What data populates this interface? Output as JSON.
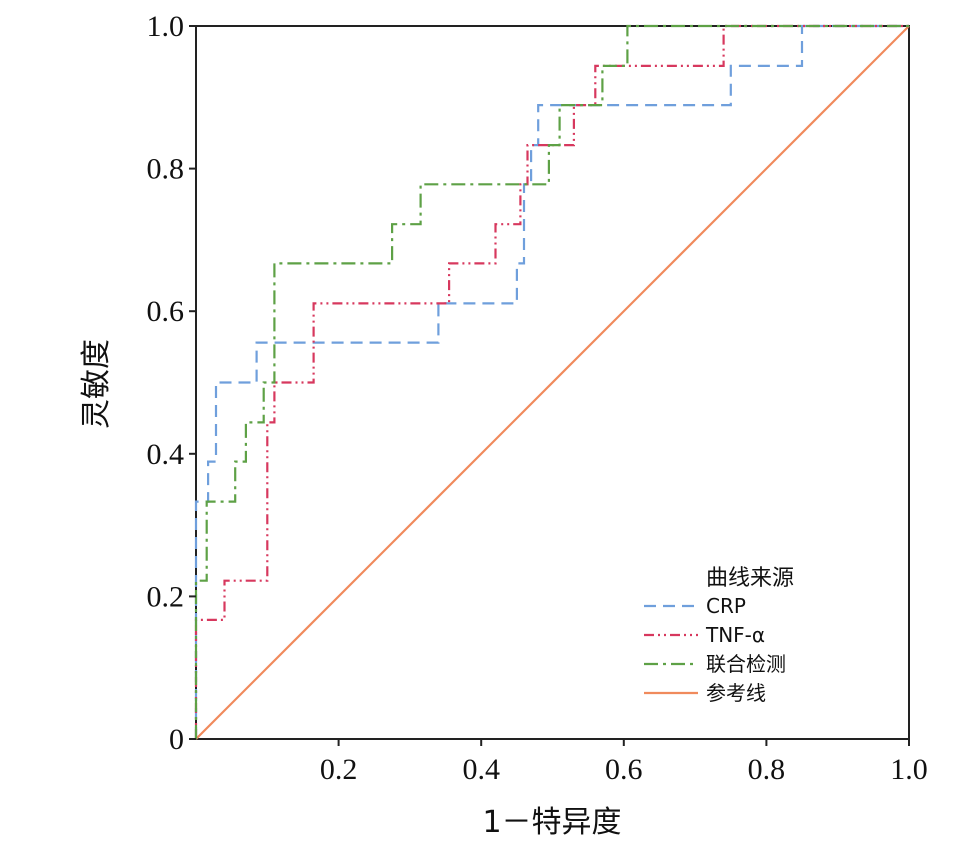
{
  "chart_data": {
    "type": "line",
    "title": "",
    "xlabel": "1－特异度",
    "ylabel": "灵敏度",
    "xlim": [
      0,
      1
    ],
    "ylim": [
      0,
      1
    ],
    "x_ticks": [
      "0.2",
      "0.4",
      "0.6",
      "0.8",
      "1.0"
    ],
    "y_ticks": [
      "0",
      "0.2",
      "0.4",
      "0.6",
      "0.8",
      "1.0"
    ],
    "legend": {
      "title": "曲线来源",
      "position": "bottom-right"
    },
    "series": [
      {
        "name": "CRP",
        "color": "#6f9fdc",
        "dash": "dashed",
        "points": [
          [
            0,
            0
          ],
          [
            0,
            0.333
          ],
          [
            0.017,
            0.333
          ],
          [
            0.017,
            0.389
          ],
          [
            0.028,
            0.389
          ],
          [
            0.028,
            0.5
          ],
          [
            0.085,
            0.5
          ],
          [
            0.085,
            0.556
          ],
          [
            0.34,
            0.556
          ],
          [
            0.34,
            0.611
          ],
          [
            0.45,
            0.611
          ],
          [
            0.45,
            0.667
          ],
          [
            0.46,
            0.667
          ],
          [
            0.46,
            0.778
          ],
          [
            0.47,
            0.778
          ],
          [
            0.47,
            0.833
          ],
          [
            0.48,
            0.833
          ],
          [
            0.48,
            0.889
          ],
          [
            0.75,
            0.889
          ],
          [
            0.75,
            0.944
          ],
          [
            0.85,
            0.944
          ],
          [
            0.85,
            1
          ],
          [
            1,
            1
          ]
        ]
      },
      {
        "name": "TNF-α",
        "color": "#d7385e",
        "dash": "dash-dot-dot",
        "points": [
          [
            0,
            0
          ],
          [
            0,
            0.167
          ],
          [
            0.04,
            0.167
          ],
          [
            0.04,
            0.222
          ],
          [
            0.1,
            0.222
          ],
          [
            0.1,
            0.444
          ],
          [
            0.11,
            0.444
          ],
          [
            0.11,
            0.5
          ],
          [
            0.165,
            0.5
          ],
          [
            0.165,
            0.611
          ],
          [
            0.355,
            0.611
          ],
          [
            0.355,
            0.667
          ],
          [
            0.42,
            0.667
          ],
          [
            0.42,
            0.722
          ],
          [
            0.455,
            0.722
          ],
          [
            0.455,
            0.778
          ],
          [
            0.465,
            0.778
          ],
          [
            0.465,
            0.833
          ],
          [
            0.53,
            0.833
          ],
          [
            0.53,
            0.889
          ],
          [
            0.56,
            0.889
          ],
          [
            0.56,
            0.944
          ],
          [
            0.74,
            0.944
          ],
          [
            0.74,
            1
          ],
          [
            1,
            1
          ]
        ]
      },
      {
        "name": "联合检测",
        "color": "#5ea146",
        "dash": "dash-dot",
        "points": [
          [
            0,
            0
          ],
          [
            0,
            0.222
          ],
          [
            0.015,
            0.222
          ],
          [
            0.015,
            0.333
          ],
          [
            0.055,
            0.333
          ],
          [
            0.055,
            0.389
          ],
          [
            0.07,
            0.389
          ],
          [
            0.07,
            0.444
          ],
          [
            0.095,
            0.444
          ],
          [
            0.095,
            0.5
          ],
          [
            0.11,
            0.5
          ],
          [
            0.11,
            0.667
          ],
          [
            0.275,
            0.667
          ],
          [
            0.275,
            0.722
          ],
          [
            0.315,
            0.722
          ],
          [
            0.315,
            0.778
          ],
          [
            0.495,
            0.778
          ],
          [
            0.495,
            0.833
          ],
          [
            0.51,
            0.833
          ],
          [
            0.51,
            0.889
          ],
          [
            0.57,
            0.889
          ],
          [
            0.57,
            0.944
          ],
          [
            0.605,
            0.944
          ],
          [
            0.605,
            1
          ],
          [
            1,
            1
          ]
        ]
      },
      {
        "name": "参考线",
        "color": "#f08a5c",
        "dash": "solid",
        "points": [
          [
            0,
            0
          ],
          [
            1,
            1
          ]
        ]
      }
    ]
  }
}
